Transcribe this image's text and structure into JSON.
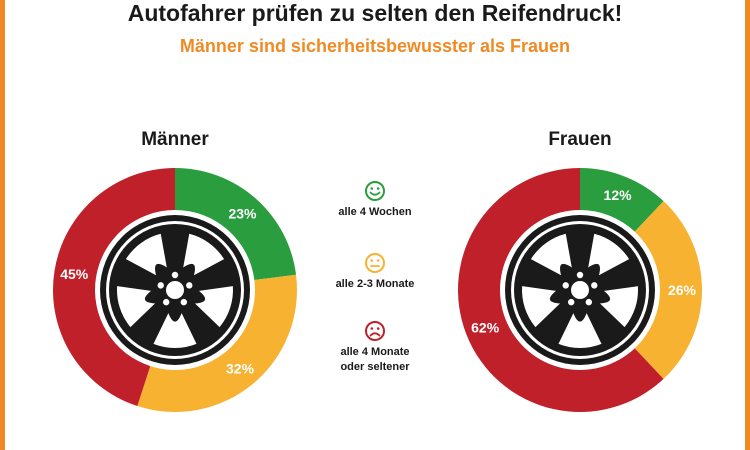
{
  "title": "Autofahrer prüfen zu selten den Reifendruck!",
  "subtitle": "Männer sind sicherheitsbewusster als Frauen",
  "colors": {
    "accent": "#f08a24",
    "green": "#2a9d3e",
    "yellow": "#f7b232",
    "red": "#c0202a",
    "tire": "#1a1a1a"
  },
  "legend": [
    {
      "label": "alle 4 Wochen",
      "icon": "happy-face-icon",
      "color": "#2a9d3e"
    },
    {
      "label": "alle 2-3 Monate",
      "icon": "neutral-face-icon",
      "color": "#f7b232"
    },
    {
      "label": "alle 4 Monate\noder seltener",
      "icon": "sad-face-icon",
      "color": "#c0202a"
    }
  ],
  "chart_data": [
    {
      "type": "pie",
      "title": "Männer",
      "categories": [
        "alle 4 Wochen",
        "alle 2-3 Monate",
        "alle 4 Monate oder seltener"
      ],
      "values": [
        23,
        32,
        45
      ],
      "labels": [
        "23%",
        "32%",
        "45%"
      ],
      "colors": [
        "#2a9d3e",
        "#f7b232",
        "#c0202a"
      ]
    },
    {
      "type": "pie",
      "title": "Frauen",
      "categories": [
        "alle 4 Wochen",
        "alle 2-3 Monate",
        "alle 4 Monate oder seltener"
      ],
      "values": [
        12,
        26,
        62
      ],
      "labels": [
        "12%",
        "26%",
        "62%"
      ],
      "colors": [
        "#2a9d3e",
        "#f7b232",
        "#c0202a"
      ]
    }
  ]
}
